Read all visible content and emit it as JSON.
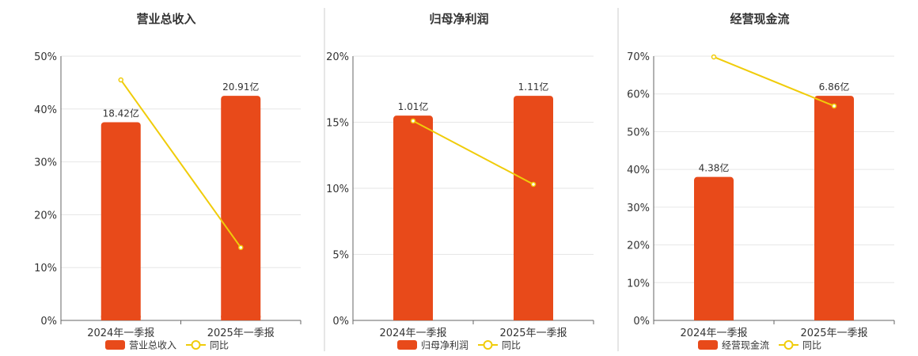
{
  "chart_data": [
    {
      "type": "bar",
      "title": "营业总收入",
      "categories": [
        "2024年一季报",
        "2025年一季报"
      ],
      "ylim": [
        0,
        50
      ],
      "yticks": [
        "0%",
        "10%",
        "20%",
        "30%",
        "40%",
        "50%"
      ],
      "series": [
        {
          "name": "营业总收入",
          "kind": "bar",
          "values": [
            37.5,
            42.5
          ],
          "labels": [
            "18.42亿",
            "20.91亿"
          ],
          "color": "#e84a1a"
        },
        {
          "name": "同比",
          "kind": "line",
          "values": [
            45.5,
            13.8
          ],
          "color": "#f0cc0a"
        }
      ],
      "legend_position": "bottom",
      "grid": true
    },
    {
      "type": "bar",
      "title": "归母净利润",
      "categories": [
        "2024年一季报",
        "2025年一季报"
      ],
      "ylim": [
        0,
        20
      ],
      "yticks": [
        "0%",
        "5%",
        "10%",
        "15%",
        "20%"
      ],
      "series": [
        {
          "name": "归母净利润",
          "kind": "bar",
          "values": [
            15.5,
            17.0
          ],
          "labels": [
            "1.01亿",
            "1.11亿"
          ],
          "color": "#e84a1a"
        },
        {
          "name": "同比",
          "kind": "line",
          "values": [
            15.1,
            10.3
          ],
          "color": "#f0cc0a"
        }
      ],
      "legend_position": "bottom",
      "grid": true
    },
    {
      "type": "bar",
      "title": "经营现金流",
      "categories": [
        "2024年一季报",
        "2025年一季报"
      ],
      "ylim": [
        0,
        70
      ],
      "yticks": [
        "0%",
        "10%",
        "20%",
        "30%",
        "40%",
        "50%",
        "60%",
        "70%"
      ],
      "series": [
        {
          "name": "经营现金流",
          "kind": "bar",
          "values": [
            38.0,
            59.5
          ],
          "labels": [
            "4.38亿",
            "6.86亿"
          ],
          "color": "#e84a1a"
        },
        {
          "name": "同比",
          "kind": "line",
          "values": [
            69.8,
            56.8
          ],
          "color": "#f0cc0a"
        }
      ],
      "legend_position": "bottom",
      "grid": true
    }
  ]
}
